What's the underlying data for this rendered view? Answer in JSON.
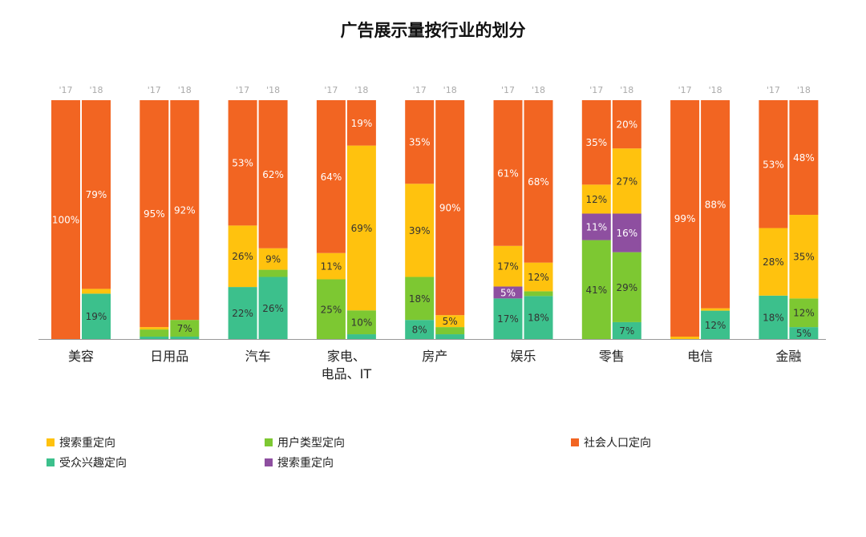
{
  "chart_data": {
    "type": "bar",
    "stacked": "percent",
    "title": "广告展示量按行业的划分",
    "bar_labels": [
      "'17",
      "'18"
    ],
    "categories": [
      {
        "name": "美容",
        "bars": [
          {
            "year": "'17",
            "segments": [
              {
                "key": "social",
                "value": 100,
                "label": "100%"
              }
            ]
          },
          {
            "year": "'18",
            "segments": [
              {
                "key": "interest",
                "value": 19,
                "label": "19%"
              },
              {
                "key": "search",
                "value": 2,
                "label": ""
              },
              {
                "key": "social",
                "value": 79,
                "label": "79%"
              }
            ]
          }
        ]
      },
      {
        "name": "日用品",
        "bars": [
          {
            "year": "'17",
            "segments": [
              {
                "key": "interest",
                "value": 1,
                "label": ""
              },
              {
                "key": "usertype",
                "value": 3,
                "label": ""
              },
              {
                "key": "search",
                "value": 1,
                "label": ""
              },
              {
                "key": "social",
                "value": 95,
                "label": "95%"
              }
            ]
          },
          {
            "year": "'18",
            "segments": [
              {
                "key": "interest",
                "value": 1,
                "label": ""
              },
              {
                "key": "usertype",
                "value": 7,
                "label": "7%"
              },
              {
                "key": "social",
                "value": 92,
                "label": "92%"
              }
            ]
          }
        ]
      },
      {
        "name": "汽车",
        "bars": [
          {
            "year": "'17",
            "segments": [
              {
                "key": "interest",
                "value": 22,
                "label": "22%"
              },
              {
                "key": "search",
                "value": 26,
                "label": "26%"
              },
              {
                "key": "social",
                "value": 53,
                "label": "53%"
              }
            ]
          },
          {
            "year": "'18",
            "segments": [
              {
                "key": "interest",
                "value": 26,
                "label": "26%"
              },
              {
                "key": "usertype",
                "value": 3,
                "label": ""
              },
              {
                "key": "search",
                "value": 9,
                "label": "9%"
              },
              {
                "key": "social",
                "value": 62,
                "label": "62%"
              }
            ]
          }
        ]
      },
      {
        "name": "家电、电品、IT",
        "lines": [
          "家电、",
          "电品、IT"
        ],
        "bars": [
          {
            "year": "'17",
            "segments": [
              {
                "key": "usertype",
                "value": 25,
                "label": "25%"
              },
              {
                "key": "search",
                "value": 11,
                "label": "11%"
              },
              {
                "key": "social",
                "value": 64,
                "label": "64%"
              }
            ]
          },
          {
            "year": "'18",
            "segments": [
              {
                "key": "interest",
                "value": 2,
                "label": ""
              },
              {
                "key": "usertype",
                "value": 10,
                "label": "10%"
              },
              {
                "key": "search",
                "value": 69,
                "label": "69%"
              },
              {
                "key": "social",
                "value": 19,
                "label": "19%"
              }
            ]
          }
        ]
      },
      {
        "name": "房产",
        "bars": [
          {
            "year": "'17",
            "segments": [
              {
                "key": "interest",
                "value": 8,
                "label": "8%"
              },
              {
                "key": "usertype",
                "value": 18,
                "label": "18%"
              },
              {
                "key": "search",
                "value": 39,
                "label": "39%"
              },
              {
                "key": "social",
                "value": 35,
                "label": "35%"
              }
            ]
          },
          {
            "year": "'18",
            "segments": [
              {
                "key": "interest",
                "value": 2,
                "label": ""
              },
              {
                "key": "usertype",
                "value": 3,
                "label": ""
              },
              {
                "key": "search",
                "value": 5,
                "label": "5%"
              },
              {
                "key": "social",
                "value": 90,
                "label": "90%"
              }
            ]
          }
        ]
      },
      {
        "name": "娱乐",
        "bars": [
          {
            "year": "'17",
            "segments": [
              {
                "key": "interest",
                "value": 17,
                "label": "17%"
              },
              {
                "key": "search2",
                "value": 5,
                "label": "5%"
              },
              {
                "key": "search",
                "value": 17,
                "label": "17%"
              },
              {
                "key": "social",
                "value": 61,
                "label": "61%"
              }
            ]
          },
          {
            "year": "'18",
            "segments": [
              {
                "key": "interest",
                "value": 18,
                "label": "18%"
              },
              {
                "key": "usertype",
                "value": 2,
                "label": ""
              },
              {
                "key": "search",
                "value": 12,
                "label": "12%"
              },
              {
                "key": "social",
                "value": 68,
                "label": "68%"
              }
            ]
          }
        ]
      },
      {
        "name": "零售",
        "bars": [
          {
            "year": "'17",
            "segments": [
              {
                "key": "usertype",
                "value": 41,
                "label": "41%"
              },
              {
                "key": "search2",
                "value": 11,
                "label": "11%"
              },
              {
                "key": "search",
                "value": 12,
                "label": "12%"
              },
              {
                "key": "social",
                "value": 35,
                "label": "35%"
              }
            ]
          },
          {
            "year": "'18",
            "segments": [
              {
                "key": "interest",
                "value": 7,
                "label": "7%"
              },
              {
                "key": "usertype",
                "value": 29,
                "label": "29%"
              },
              {
                "key": "search2",
                "value": 16,
                "label": "16%"
              },
              {
                "key": "search",
                "value": 27,
                "label": "27%"
              },
              {
                "key": "social",
                "value": 20,
                "label": "20%"
              }
            ]
          }
        ]
      },
      {
        "name": "电信",
        "bars": [
          {
            "year": "'17",
            "segments": [
              {
                "key": "search",
                "value": 1,
                "label": ""
              },
              {
                "key": "social",
                "value": 99,
                "label": "99%"
              }
            ]
          },
          {
            "year": "'18",
            "segments": [
              {
                "key": "interest",
                "value": 12,
                "label": "12%"
              },
              {
                "key": "search",
                "value": 1,
                "label": ""
              },
              {
                "key": "social",
                "value": 88,
                "label": "88%"
              }
            ]
          }
        ]
      },
      {
        "name": "金融",
        "bars": [
          {
            "year": "'17",
            "segments": [
              {
                "key": "interest",
                "value": 18,
                "label": "18%"
              },
              {
                "key": "search",
                "value": 28,
                "label": "28%"
              },
              {
                "key": "social",
                "value": 53,
                "label": "53%"
              }
            ]
          },
          {
            "year": "'18",
            "segments": [
              {
                "key": "interest",
                "value": 5,
                "label": "5%"
              },
              {
                "key": "usertype",
                "value": 12,
                "label": "12%"
              },
              {
                "key": "search",
                "value": 35,
                "label": "35%"
              },
              {
                "key": "social",
                "value": 48,
                "label": "48%"
              }
            ]
          }
        ]
      }
    ],
    "legend": [
      {
        "key": "search",
        "label": "搜索重定向",
        "color": "#FFC20E"
      },
      {
        "key": "usertype",
        "label": "用户类型定向",
        "color": "#7DC832"
      },
      {
        "key": "social",
        "label": "社会人口定向",
        "color": "#F26522"
      },
      {
        "key": "interest",
        "label": "受众兴趣定向",
        "color": "#3CC08C"
      },
      {
        "key": "search2",
        "label": "搜索重定向",
        "color": "#8E4FA0"
      }
    ],
    "legend_position": "bottom",
    "colors": {
      "search": "#FFC20E",
      "usertype": "#7DC832",
      "social": "#F26522",
      "interest": "#3CC08C",
      "search2": "#8E4FA0"
    }
  }
}
